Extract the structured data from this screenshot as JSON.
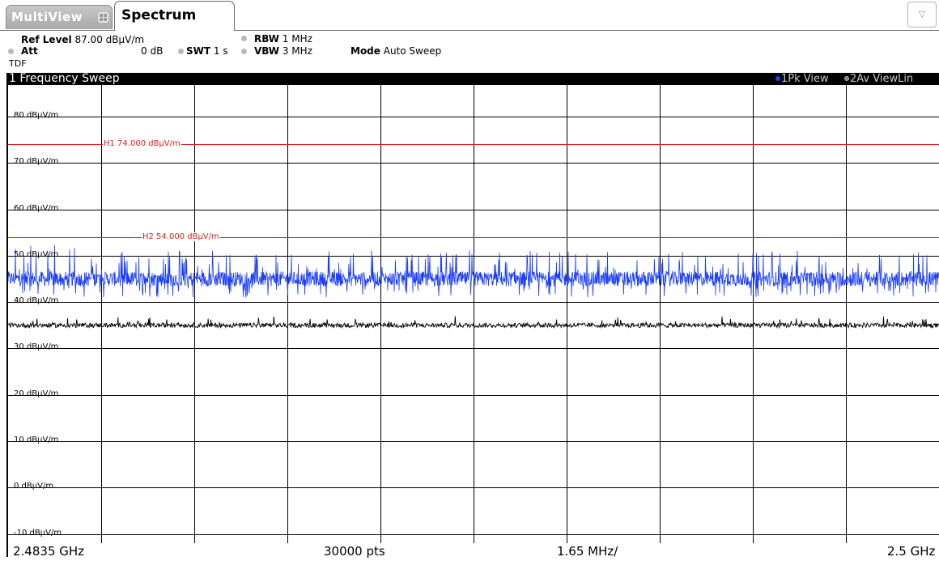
{
  "tabs": {
    "multiview_label": "MultiView",
    "spectrum_label": "Spectrum",
    "menu_icon": "triangle-down-icon"
  },
  "settings": {
    "ref_level_label": "Ref Level",
    "ref_level_value": "87.00 dBµV/m",
    "att_label": "Att",
    "att_value": "0 dB",
    "swt_label": "SWT",
    "swt_value": "1 s",
    "rbw_label": "RBW",
    "rbw_value": "1 MHz",
    "vbw_label": "VBW",
    "vbw_value": "3 MHz",
    "mode_label": "Mode",
    "mode_value": "Auto Sweep",
    "transducer": "TDF"
  },
  "diagram": {
    "title": "1 Frequency Sweep",
    "traces": [
      {
        "label": "1Pk View",
        "color": "#1a3cff"
      },
      {
        "label": "2Av ViewLin",
        "color": "#b0b0b0"
      }
    ],
    "y_axis_labels": [
      "80 dBµV/m",
      "70 dBµV/m",
      "60 dBµV/m",
      "50 dBµV/m",
      "40 dBµV/m",
      "30 dBµV/m",
      "20 dBµV/m",
      "10 dBµV/m",
      "0 dBµV/m",
      "-10 dBµV/m"
    ],
    "limit_lines": [
      {
        "label": "H1  74.000 dBµV/m",
        "level": 74
      },
      {
        "label": "H2  54.000 dBµV/m",
        "level": 54
      }
    ],
    "footer": {
      "start": "2.4835 GHz",
      "points": "30000 pts",
      "span_per_div": "1.65 MHz/",
      "stop": "2.5 GHz"
    }
  },
  "chart_data": {
    "type": "line",
    "x_unit": "GHz",
    "y_unit": "dBµV/m",
    "xlim": [
      2.4835,
      2.5
    ],
    "ylim": [
      -17,
      90
    ],
    "y_ticks": [
      80,
      70,
      60,
      50,
      40,
      30,
      20,
      10,
      0,
      -10
    ],
    "x_divisions": 10,
    "grid": true,
    "series": [
      {
        "name": "1Pk View",
        "color": "#1a3cff",
        "mean_level": 45,
        "variation": [
          41,
          53
        ]
      },
      {
        "name": "2Av ViewLin",
        "color": "#000000",
        "mean_level": 35,
        "variation": [
          34,
          37
        ]
      }
    ],
    "limit_lines": [
      {
        "name": "H1",
        "value": 74,
        "color": "#e0211c"
      },
      {
        "name": "H2",
        "value": 54,
        "color": "#e0211c"
      }
    ]
  }
}
